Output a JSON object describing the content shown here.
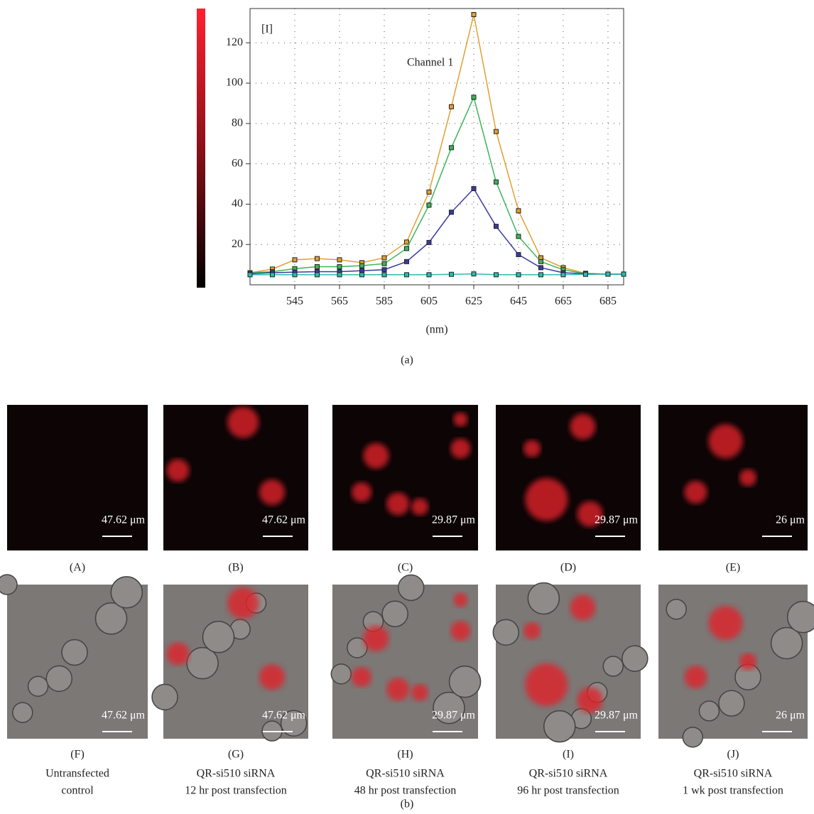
{
  "chart_data": {
    "type": "line",
    "ylabel": "[I]",
    "annotation": "Channel 1",
    "xlabel": "(nm)",
    "x": [
      525,
      535,
      545,
      555,
      565,
      575,
      585,
      595,
      605,
      615,
      625,
      635,
      645,
      655,
      665,
      675,
      685,
      692
    ],
    "xlim": [
      525,
      692
    ],
    "xticks": [
      545,
      565,
      585,
      605,
      625,
      645,
      665,
      685
    ],
    "ylim": [
      0,
      137
    ],
    "yticks": [
      20,
      40,
      60,
      80,
      100,
      120
    ],
    "grid": true,
    "series": [
      {
        "color": "#e0a030",
        "values": [
          6,
          7.8,
          12.4,
          13,
          12.4,
          11,
          13.4,
          21.2,
          46,
          88.3,
          134,
          76,
          36.7,
          13.4,
          8.5,
          5.7,
          5.3,
          5.3
        ]
      },
      {
        "color": "#3cb55a",
        "values": [
          6,
          6.5,
          8,
          9,
          9,
          9.5,
          10.5,
          18,
          39.5,
          68,
          93,
          51,
          24,
          11.5,
          7.5,
          5.5,
          5.3,
          5.3
        ]
      },
      {
        "color": "#3a3aa0",
        "values": [
          5.5,
          6,
          6.3,
          6.5,
          6.5,
          7,
          7.5,
          11.5,
          21,
          36,
          47.7,
          29,
          15,
          8.5,
          6,
          5.5,
          5.3,
          5.3
        ]
      },
      {
        "color": "#30b8b0",
        "values": [
          5,
          5,
          5,
          5,
          5,
          5,
          5,
          5,
          5,
          5.2,
          5.4,
          5,
          5,
          5,
          5,
          5.2,
          5.3,
          5.3
        ]
      }
    ]
  },
  "figure_labels": {
    "a": "(a)",
    "b": "(b)"
  },
  "panels": [
    {
      "label": "(A)",
      "scale": "47.62 μm"
    },
    {
      "label": "(B)",
      "scale": "47.62 μm"
    },
    {
      "label": "(C)",
      "scale": "29.87 μm"
    },
    {
      "label": "(D)",
      "scale": "29.87 μm"
    },
    {
      "label": "(E)",
      "scale": "26 μm"
    },
    {
      "label": "(F)",
      "scale": "47.62 μm"
    },
    {
      "label": "(G)",
      "scale": "47.62 μm"
    },
    {
      "label": "(H)",
      "scale": "29.87 μm"
    },
    {
      "label": "(I)",
      "scale": "29.87 μm"
    },
    {
      "label": "(J)",
      "scale": "26 μm"
    }
  ],
  "captions": [
    {
      "line1": "Untransfected",
      "line2": "control"
    },
    {
      "line1": "QR-si510 siRNA",
      "line2": "12 hr post transfection"
    },
    {
      "line1": "QR-si510 siRNA",
      "line2": "48 hr post transfection"
    },
    {
      "line1": "QR-si510 siRNA",
      "line2": "96 hr post transfection"
    },
    {
      "line1": "QR-si510 siRNA",
      "line2": "1 wk post transfection"
    }
  ]
}
